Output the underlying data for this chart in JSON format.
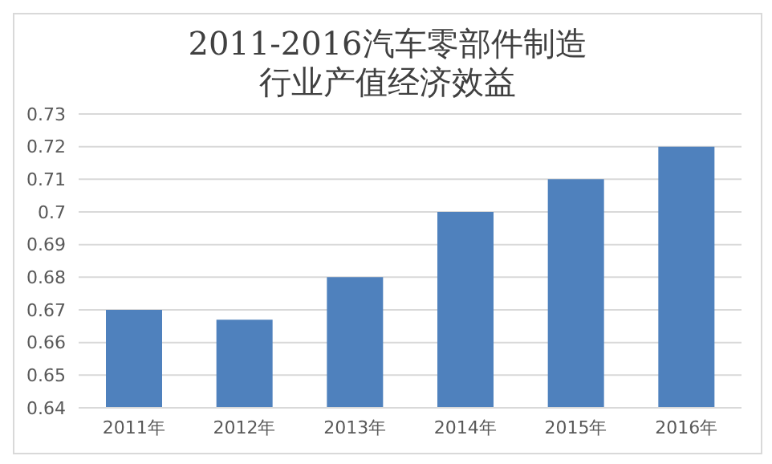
{
  "chart_data": {
    "type": "bar",
    "title": "2011-2016汽车零部件制造行业产值经济效益",
    "categories": [
      "2011年",
      "2012年",
      "2013年",
      "2014年",
      "2015年",
      "2016年"
    ],
    "values": [
      0.67,
      0.667,
      0.68,
      0.7,
      0.71,
      0.72
    ],
    "color": "#4f81bd",
    "ylim": [
      0.64,
      0.73
    ],
    "yticks": [
      0.64,
      0.65,
      0.66,
      0.67,
      0.68,
      0.69,
      {
        "value": 0.7,
        "label": "0.7"
      },
      0.71,
      0.72,
      0.73
    ],
    "grid": "y"
  }
}
